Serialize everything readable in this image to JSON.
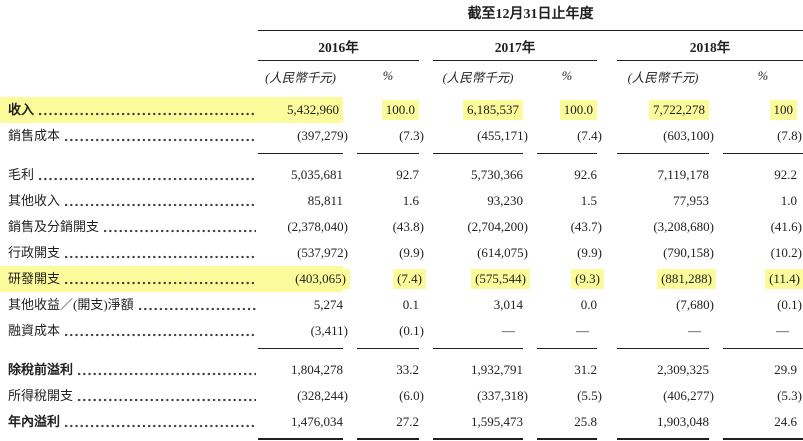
{
  "table": {
    "period_header": "截至12月31日止年度",
    "year_groups": [
      {
        "year": "2016年",
        "unit": "(人民幣千元)",
        "pct": "%"
      },
      {
        "year": "2017年",
        "unit": "(人民幣千元)",
        "pct": "%"
      },
      {
        "year": "2018年",
        "unit": "(人民幣千元)",
        "pct": "%"
      }
    ],
    "rows": [
      {
        "label": "收入",
        "highlight": true,
        "bold": true,
        "v2016": "5,432,960",
        "p2016": "100.0",
        "v2017": "6,185,537",
        "p2017": "100.0",
        "v2018": "7,722,278",
        "p2018": "100"
      },
      {
        "label": "銷售成本",
        "highlight": false,
        "bold": false,
        "v2016": "(397,279)",
        "p2016": "(7.3)",
        "v2017": "(455,171)",
        "p2017": "(7.4)",
        "v2018": "(603,100)",
        "p2018": "(7.8)"
      },
      {
        "label": "毛利",
        "highlight": false,
        "bold": false,
        "v2016": "5,035,681",
        "p2016": "92.7",
        "v2017": "5,730,366",
        "p2017": "92.6",
        "v2018": "7,119,178",
        "p2018": "92.2"
      },
      {
        "label": "其他收入",
        "highlight": false,
        "bold": false,
        "v2016": "85,811",
        "p2016": "1.6",
        "v2017": "93,230",
        "p2017": "1.5",
        "v2018": "77,953",
        "p2018": "1.0"
      },
      {
        "label": "銷售及分銷開支",
        "highlight": false,
        "bold": false,
        "v2016": "(2,378,040)",
        "p2016": "(43.8)",
        "v2017": "(2,704,200)",
        "p2017": "(43.7)",
        "v2018": "(3,208,680)",
        "p2018": "(41.6)"
      },
      {
        "label": "行政開支",
        "highlight": false,
        "bold": false,
        "v2016": "(537,972)",
        "p2016": "(9.9)",
        "v2017": "(614,075)",
        "p2017": "(9.9)",
        "v2018": "(790,158)",
        "p2018": "(10.2)"
      },
      {
        "label": "研發開支",
        "highlight": true,
        "bold": false,
        "v2016": "(403,065)",
        "p2016": "(7.4)",
        "v2017": "(575,544)",
        "p2017": "(9.3)",
        "v2018": "(881,288)",
        "p2018": "(11.4)"
      },
      {
        "label": "其他收益／(開支)淨額",
        "highlight": false,
        "bold": false,
        "v2016": "5,274",
        "p2016": "0.1",
        "v2017": "3,014",
        "p2017": "0.0",
        "v2018": "(7,680)",
        "p2018": "(0.1)"
      },
      {
        "label": "融資成本",
        "highlight": false,
        "bold": false,
        "v2016": "(3,411)",
        "p2016": "(0.1)",
        "v2017": "—",
        "p2017": "—",
        "v2018": "—",
        "p2018": "—"
      },
      {
        "label": "除稅前溢利",
        "highlight": false,
        "bold": true,
        "v2016": "1,804,278",
        "p2016": "33.2",
        "v2017": "1,932,791",
        "p2017": "31.2",
        "v2018": "2,309,325",
        "p2018": "29.9"
      },
      {
        "label": "所得稅開支",
        "highlight": false,
        "bold": false,
        "v2016": "(328,244)",
        "p2016": "(6.0)",
        "v2017": "(337,318)",
        "p2017": "(5.5)",
        "v2018": "(406,277)",
        "p2018": "(5.3)"
      },
      {
        "label": "年內溢利",
        "highlight": false,
        "bold": true,
        "v2016": "1,476,034",
        "p2016": "27.2",
        "v2017": "1,595,473",
        "p2017": "25.8",
        "v2018": "1,903,048",
        "p2018": "24.6"
      }
    ]
  },
  "colors": {
    "highlight": "#fbfb9b",
    "text": "#1f1f1f",
    "rule": "#231f20"
  }
}
